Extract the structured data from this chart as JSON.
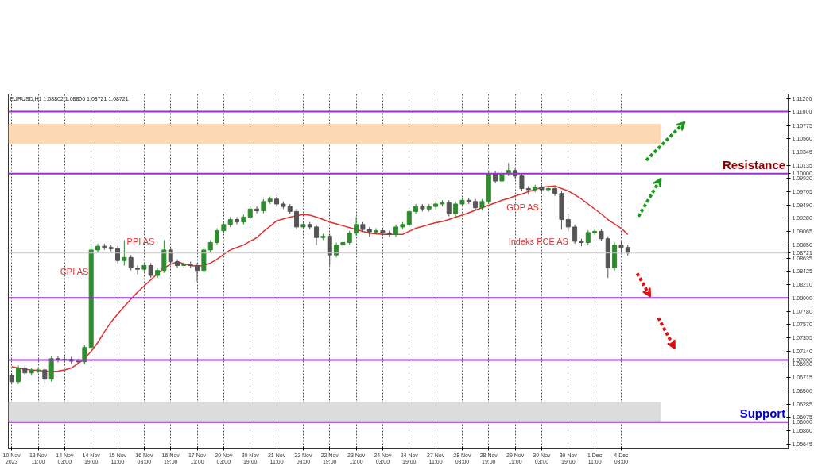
{
  "chart_data": {
    "type": "candlestick",
    "title": "EURUSD,H1 1.08802 1.08806 1.08721 1.08721",
    "categories": [
      "10 Nov 2023",
      null,
      null,
      null,
      "13 Nov 11:00",
      null,
      null,
      null,
      "14 Nov 03:00",
      null,
      null,
      null,
      "14 Nov 19:00",
      null,
      null,
      null,
      "15 Nov 11:00",
      null,
      null,
      null,
      "16 Nov 03:00",
      null,
      null,
      null,
      "16 Nov 19:00",
      null,
      null,
      null,
      "17 Nov 11:00",
      null,
      null,
      null,
      "20 Nov 03:00",
      null,
      null,
      null,
      "20 Nov 19:00",
      null,
      null,
      null,
      "21 Nov 11:00",
      null,
      null,
      null,
      "22 Nov 03:00",
      null,
      null,
      null,
      "22 Nov 19:00",
      null,
      null,
      null,
      "23 Nov 11:00",
      null,
      null,
      null,
      "24 Nov 03:00",
      null,
      null,
      null,
      "24 Nov 19:00",
      null,
      null,
      null,
      "27 Nov 11:00",
      null,
      null,
      null,
      "28 Nov 03:00",
      null,
      null,
      null,
      "28 Nov 19:00",
      null,
      null,
      null,
      "29 Nov 11:00",
      null,
      null,
      null,
      "30 Nov 03:00",
      null,
      null,
      null,
      "30 Nov 19:00",
      null,
      null,
      null,
      "1 Dec 11:00",
      null,
      null,
      null,
      "4 Dec 03:00",
      null
    ],
    "ohlc": [
      [
        1.0675,
        1.0679,
        1.0661,
        1.0665
      ],
      [
        1.0665,
        1.0691,
        1.0661,
        1.0687
      ],
      [
        1.0687,
        1.0691,
        1.0675,
        1.0679
      ],
      [
        1.0679,
        1.0687,
        1.0675,
        1.0683
      ],
      [
        1.0683,
        1.0688,
        1.0679,
        1.0684
      ],
      [
        1.0684,
        1.0688,
        1.0662,
        1.0669
      ],
      [
        1.0669,
        1.0706,
        1.0665,
        1.0702
      ],
      [
        1.0702,
        1.0706,
        1.0696,
        1.07
      ],
      [
        1.07,
        1.0705,
        1.0696,
        1.0701
      ],
      [
        1.0701,
        1.0705,
        1.0694,
        1.0698
      ],
      [
        1.0698,
        1.0702,
        1.0693,
        1.0697
      ],
      [
        1.0697,
        1.0724,
        1.0693,
        1.072
      ],
      [
        1.072,
        1.0885,
        1.0716,
        1.0877
      ],
      [
        1.0877,
        1.0887,
        1.0873,
        1.0883
      ],
      [
        1.0883,
        1.0887,
        1.0877,
        1.0881
      ],
      [
        1.0881,
        1.0885,
        1.0875,
        1.0879
      ],
      [
        1.0879,
        1.0883,
        1.0856,
        1.086
      ],
      [
        1.086,
        1.0893,
        1.0852,
        1.0865
      ],
      [
        1.0865,
        1.0869,
        1.0844,
        1.0848
      ],
      [
        1.0848,
        1.0852,
        1.0838,
        1.0846
      ],
      [
        1.0846,
        1.0856,
        1.0842,
        1.0852
      ],
      [
        1.0852,
        1.0856,
        1.0832,
        1.0836
      ],
      [
        1.0836,
        1.0848,
        1.0832,
        1.0844
      ],
      [
        1.0844,
        1.0893,
        1.084,
        1.0877
      ],
      [
        1.0877,
        1.0881,
        1.0854,
        1.0858
      ],
      [
        1.0858,
        1.0862,
        1.0848,
        1.0852
      ],
      [
        1.0852,
        1.0858,
        1.0848,
        1.0854
      ],
      [
        1.0854,
        1.0858,
        1.0848,
        1.0852
      ],
      [
        1.0852,
        1.0856,
        1.0826,
        1.0844
      ],
      [
        1.0844,
        1.0881,
        1.084,
        1.0877
      ],
      [
        1.0877,
        1.0893,
        1.0873,
        1.0889
      ],
      [
        1.0889,
        1.0912,
        1.0885,
        1.0908
      ],
      [
        1.0908,
        1.0922,
        1.0904,
        1.0918
      ],
      [
        1.0918,
        1.093,
        1.0914,
        1.0926
      ],
      [
        1.0926,
        1.093,
        1.0918,
        1.0922
      ],
      [
        1.0922,
        1.0934,
        1.0918,
        1.093
      ],
      [
        1.093,
        1.0947,
        1.0926,
        1.0943
      ],
      [
        1.0943,
        1.0947,
        1.0936,
        1.094
      ],
      [
        1.094,
        1.0959,
        1.0936,
        1.0955
      ],
      [
        1.0955,
        1.0963,
        1.0951,
        1.0959
      ],
      [
        1.0959,
        1.0963,
        1.0947,
        1.0951
      ],
      [
        1.0951,
        1.0955,
        1.0943,
        1.0947
      ],
      [
        1.0947,
        1.0951,
        1.0935,
        1.0939
      ],
      [
        1.0939,
        1.0943,
        1.091,
        1.0914
      ],
      [
        1.0914,
        1.0922,
        1.091,
        1.0918
      ],
      [
        1.0918,
        1.0922,
        1.091,
        1.0914
      ],
      [
        1.0914,
        1.0918,
        1.0885,
        1.0897
      ],
      [
        1.0897,
        1.0903,
        1.0893,
        1.0899
      ],
      [
        1.0899,
        1.0903,
        1.0852,
        1.0869
      ],
      [
        1.0869,
        1.0889,
        1.0865,
        1.0885
      ],
      [
        1.0885,
        1.0893,
        1.0881,
        1.0889
      ],
      [
        1.0889,
        1.0908,
        1.0885,
        1.0904
      ],
      [
        1.0904,
        1.093,
        1.09,
        1.0918
      ],
      [
        1.0918,
        1.0922,
        1.0906,
        1.091
      ],
      [
        1.091,
        1.0914,
        1.0898,
        1.0906
      ],
      [
        1.0906,
        1.0912,
        1.0902,
        1.0908
      ],
      [
        1.0908,
        1.0912,
        1.09,
        1.0904
      ],
      [
        1.0904,
        1.0908,
        1.0898,
        1.0902
      ],
      [
        1.0902,
        1.0918,
        1.0898,
        1.0914
      ],
      [
        1.0914,
        1.0922,
        1.091,
        1.0918
      ],
      [
        1.0918,
        1.0943,
        1.0914,
        1.0939
      ],
      [
        1.0939,
        1.0951,
        1.0935,
        1.0947
      ],
      [
        1.0947,
        1.0951,
        1.0939,
        1.0943
      ],
      [
        1.0943,
        1.0951,
        1.0939,
        1.0947
      ],
      [
        1.0947,
        1.0955,
        1.0943,
        1.0951
      ],
      [
        1.0951,
        1.0957,
        1.0947,
        1.0953
      ],
      [
        1.0953,
        1.0957,
        1.0931,
        1.0935
      ],
      [
        1.0935,
        1.0955,
        1.0931,
        1.0951
      ],
      [
        1.0951,
        1.0961,
        1.0947,
        1.0957
      ],
      [
        1.0957,
        1.0961,
        1.0951,
        1.0955
      ],
      [
        1.0955,
        1.0959,
        1.0941,
        1.0945
      ],
      [
        1.0945,
        1.0959,
        1.0941,
        1.0955
      ],
      [
        1.0955,
        1.1004,
        1.0951,
        1.1
      ],
      [
        1.1,
        1.1004,
        1.0984,
        1.0988
      ],
      [
        1.0988,
        1.1004,
        1.0984,
        1.1
      ],
      [
        1.1,
        1.1017,
        1.0996,
        1.1005
      ],
      [
        1.1005,
        1.1009,
        1.0992,
        1.0996
      ],
      [
        1.0996,
        1.1,
        1.0972,
        1.0976
      ],
      [
        1.0976,
        1.098,
        1.0966,
        1.0974
      ],
      [
        1.0974,
        1.0982,
        1.097,
        1.0978
      ],
      [
        1.0978,
        1.0982,
        1.097,
        1.0974
      ],
      [
        1.0974,
        1.098,
        1.097,
        1.0976
      ],
      [
        1.0976,
        1.098,
        1.0964,
        1.0968
      ],
      [
        1.0968,
        1.0972,
        1.091,
        1.0926
      ],
      [
        1.0926,
        1.0934,
        1.0906,
        1.0914
      ],
      [
        1.0914,
        1.0918,
        1.0887,
        1.0891
      ],
      [
        1.0891,
        1.0895,
        1.0883,
        1.0889
      ],
      [
        1.0889,
        1.0909,
        1.0885,
        1.0905
      ],
      [
        1.0905,
        1.0911,
        1.0901,
        1.0907
      ],
      [
        1.0907,
        1.0911,
        1.0891,
        1.0895
      ],
      [
        1.0895,
        1.0899,
        1.0832,
        1.0848
      ],
      [
        1.0848,
        1.0889,
        1.0844,
        1.0885
      ],
      [
        1.0885,
        1.0893,
        1.0873,
        1.0881
      ],
      [
        1.0881,
        1.0885,
        1.0868,
        1.08721
      ]
    ],
    "colors": [
      "#555555",
      "#2e8b2e",
      "#555555",
      "#2e8b2e",
      "#2e8b2e",
      "#555555",
      "#2e8b2e",
      "#555555",
      "#2e8b2e",
      "#555555",
      "#555555",
      "#2e8b2e",
      "#2e8b2e",
      "#2e8b2e",
      "#555555",
      "#555555",
      "#555555",
      "#2e8b2e",
      "#555555",
      "#555555",
      "#2e8b2e",
      "#555555",
      "#2e8b2e",
      "#2e8b2e",
      "#555555",
      "#555555",
      "#2e8b2e",
      "#555555",
      "#555555",
      "#2e8b2e",
      "#2e8b2e",
      "#2e8b2e",
      "#2e8b2e",
      "#2e8b2e",
      "#555555",
      "#2e8b2e",
      "#2e8b2e",
      "#555555",
      "#2e8b2e",
      "#2e8b2e",
      "#555555",
      "#555555",
      "#555555",
      "#555555",
      "#2e8b2e",
      "#555555",
      "#555555",
      "#2e8b2e",
      "#555555",
      "#2e8b2e",
      "#2e8b2e",
      "#2e8b2e",
      "#2e8b2e",
      "#555555",
      "#555555",
      "#2e8b2e",
      "#555555",
      "#555555",
      "#2e8b2e",
      "#2e8b2e",
      "#2e8b2e",
      "#2e8b2e",
      "#555555",
      "#2e8b2e",
      "#2e8b2e",
      "#2e8b2e",
      "#555555",
      "#2e8b2e",
      "#2e8b2e",
      "#555555",
      "#555555",
      "#2e8b2e",
      "#2e8b2e",
      "#555555",
      "#2e8b2e",
      "#2e8b2e",
      "#555555",
      "#555555",
      "#555555",
      "#2e8b2e",
      "#555555",
      "#2e8b2e",
      "#555555",
      "#555555",
      "#555555",
      "#555555",
      "#555555",
      "#2e8b2e",
      "#2e8b2e",
      "#555555",
      "#555555",
      "#2e8b2e",
      "#555555",
      "#555555"
    ],
    "series": [
      {
        "type": "line",
        "color": "#e03030",
        "values": [
          1.0689,
          1.0687,
          1.0685,
          1.0684,
          1.0683,
          1.0682,
          1.0681,
          1.0682,
          1.0684,
          1.0687,
          1.0694,
          1.0702,
          1.0714,
          1.0728,
          1.0745,
          1.0761,
          1.0774,
          1.0786,
          1.0798,
          1.0809,
          1.0819,
          1.0829,
          1.0839,
          1.0848,
          1.0854,
          1.0858,
          1.0855,
          1.0852,
          1.0851,
          1.0852,
          1.0856,
          1.0862,
          1.087,
          1.0877,
          1.0881,
          1.0885,
          1.0891,
          1.0897,
          1.0907,
          1.0915,
          1.0924,
          1.0927,
          1.093,
          1.0932,
          1.0934,
          1.0933,
          1.093,
          1.0926,
          1.0922,
          1.0919,
          1.0916,
          1.0913,
          1.091,
          1.0907,
          1.0904,
          1.0903,
          1.0902,
          1.0902,
          1.0902,
          1.0902,
          1.0907,
          1.0912,
          1.0915,
          1.0918,
          1.0921,
          1.0923,
          1.0926,
          1.093,
          1.0933,
          1.0937,
          1.0941,
          1.0945,
          1.0949,
          1.0953,
          1.0957,
          1.096,
          1.0964,
          1.0967,
          1.0971,
          1.0974,
          1.0978,
          1.0979,
          1.098,
          1.0976,
          1.0972,
          1.0966,
          1.0959,
          1.0951,
          1.0943,
          1.0935,
          1.0926,
          1.0919,
          1.0912,
          1.0902
        ]
      }
    ],
    "ylim": [
      1.0558,
      1.1128
    ],
    "yticks": [
      {
        "value": 1.112,
        "label": "1.11200"
      },
      {
        "value": 1.11,
        "label": "1.11000"
      },
      {
        "value": 1.10775,
        "label": "1.10775"
      },
      {
        "value": 1.1056,
        "label": "1.10560"
      },
      {
        "value": 1.10345,
        "label": "1.10345"
      },
      {
        "value": 1.10135,
        "label": "1.10135"
      },
      {
        "value": 1.1,
        "label": "1.10000"
      },
      {
        "value": 1.0992,
        "label": "1.09920"
      },
      {
        "value": 1.09705,
        "label": "1.09705"
      },
      {
        "value": 1.0949,
        "label": "1.09490"
      },
      {
        "value": 1.0928,
        "label": "1.09280"
      },
      {
        "value": 1.09065,
        "label": "1.09065"
      },
      {
        "value": 1.0885,
        "label": "1.08850"
      },
      {
        "value": 1.08721,
        "label": "1.08721"
      },
      {
        "value": 1.08635,
        "label": "1.08635"
      },
      {
        "value": 1.08425,
        "label": "1.08425"
      },
      {
        "value": 1.0821,
        "label": "1.08210"
      },
      {
        "value": 1.08,
        "label": "1.08000"
      },
      {
        "value": 1.0778,
        "label": "1.07780"
      },
      {
        "value": 1.0757,
        "label": "1.07570"
      },
      {
        "value": 1.07355,
        "label": "1.07355"
      },
      {
        "value": 1.0714,
        "label": "1.07140"
      },
      {
        "value": 1.07,
        "label": "1.07000"
      },
      {
        "value": 1.0693,
        "label": "1.06930"
      },
      {
        "value": 1.06715,
        "label": "1.06715"
      },
      {
        "value": 1.065,
        "label": "1.06500"
      },
      {
        "value": 1.06285,
        "label": "1.06285"
      },
      {
        "value": 1.06075,
        "label": "1.06075"
      },
      {
        "value": 1.06,
        "label": "1.06000"
      },
      {
        "value": 1.0586,
        "label": "1.05860"
      },
      {
        "value": 1.05645,
        "label": "1.05645"
      }
    ],
    "ref_lines": [
      {
        "axis": "y",
        "value": 1.11,
        "color": "#9932cc"
      },
      {
        "axis": "y",
        "value": 1.1,
        "color": "#9932cc",
        "label": "Resistance"
      },
      {
        "axis": "y",
        "value": 1.08721,
        "color": "#c8c8c8"
      },
      {
        "axis": "y",
        "value": 1.08,
        "color": "#9932cc"
      },
      {
        "axis": "y",
        "value": 1.07,
        "color": "#9932cc"
      },
      {
        "axis": "y",
        "value": 1.06,
        "color": "#9932cc",
        "label": "Support"
      }
    ],
    "bands": [
      {
        "axis": "y",
        "from": 1.1048,
        "to": 1.108,
        "color": "#fdd8b5"
      },
      {
        "axis": "y",
        "from": 1.0601,
        "to": 1.0632,
        "color": "#dcdcdc"
      }
    ],
    "annotations": [
      "CPI AS",
      "PPI AS",
      "GDP AS",
      "Indeks PCE AS"
    ],
    "grid": "x"
  }
}
